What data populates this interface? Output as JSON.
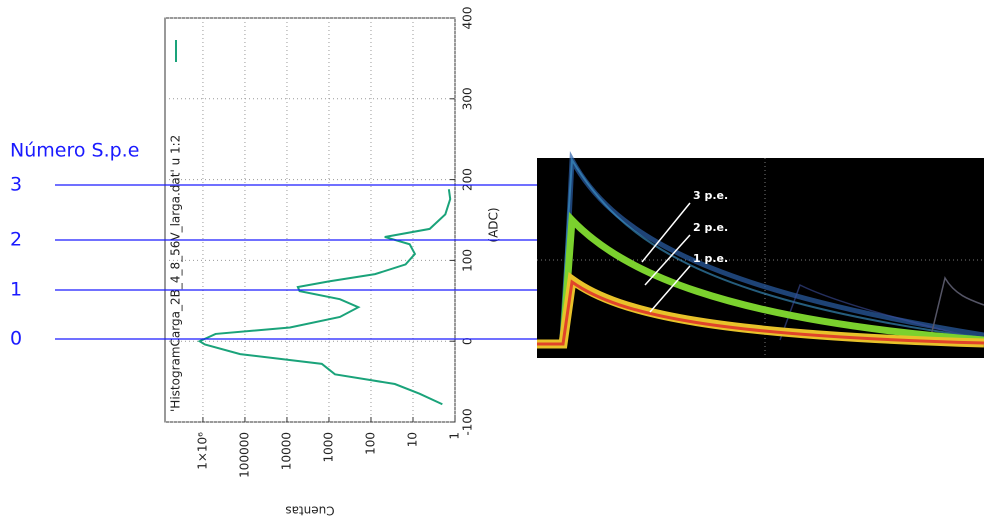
{
  "spe_title": "Número S.p.e",
  "spe_levels": [
    "3",
    "2",
    "1",
    "0"
  ],
  "chart_data": {
    "type": "line",
    "legend": "'HistogramCarga_2B_4_8_56V_larga.dat' u 1:2",
    "xlabel": "(ADC)",
    "ylabel": "Cuentas",
    "x": [
      -78,
      -65,
      -53,
      -41,
      -28,
      -16,
      -4,
      0,
      9,
      17,
      30,
      42,
      52,
      62,
      67,
      74,
      83,
      95,
      108,
      120,
      129,
      139,
      157,
      176,
      188
    ],
    "series": [
      {
        "name": "'HistogramCarga_2B_4_8_56V_larga.dat' u 1:2",
        "color": "#1aa37a",
        "values": [
          2,
          7,
          27,
          720,
          1480,
          130000,
          900000,
          1200000,
          500000,
          8500,
          550,
          200,
          550,
          5000,
          5500,
          1000,
          80,
          15,
          9,
          12,
          47,
          4,
          1.7,
          1.3,
          1.4
        ]
      }
    ],
    "xlim": [
      -100,
      400
    ],
    "xticks": [
      -100,
      0,
      100,
      200,
      300,
      400
    ],
    "ylim": [
      1,
      8000000
    ],
    "ylog": true,
    "yticks": [
      {
        "value": 1000000,
        "label": "1×10⁶"
      },
      100000,
      10000,
      1000,
      100,
      10,
      1
    ],
    "grid": true
  },
  "scope_labels": [
    "3 p.e.",
    "2 p.e.",
    "1 p.e."
  ]
}
